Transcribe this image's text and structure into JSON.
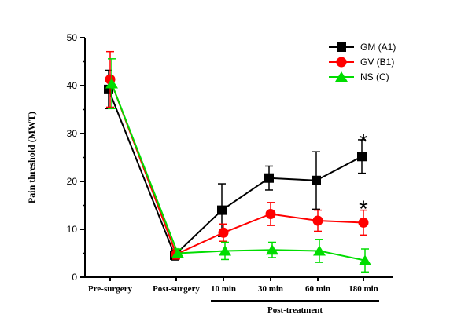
{
  "chart_data": {
    "type": "line",
    "categories": [
      "Pre-surgery",
      "Post-surgery",
      "10 min",
      "30 min",
      "60 min",
      "180 min"
    ],
    "ylabel": "Pain threshold (MWT)",
    "xlabel": "",
    "group_label": "Post-treatment",
    "ylim": [
      0,
      50
    ],
    "yticks": [
      0,
      10,
      20,
      30,
      40,
      50
    ],
    "legend_position": "top-right",
    "series": [
      {
        "name": "GM (A1)",
        "color": "#000000",
        "marker": "square",
        "values": [
          39.2,
          4.6,
          14.0,
          20.7,
          20.2,
          25.2
        ],
        "errors": [
          4.0,
          1.0,
          5.5,
          2.5,
          6.0,
          3.5
        ]
      },
      {
        "name": "GV (B1)",
        "color": "#ff0000",
        "marker": "circle",
        "values": [
          41.3,
          4.8,
          9.3,
          13.2,
          11.8,
          11.4
        ],
        "errors": [
          5.8,
          1.0,
          1.8,
          2.4,
          2.2,
          2.6
        ]
      },
      {
        "name": "NS (C)",
        "color": "#00dd00",
        "marker": "triangle",
        "values": [
          40.4,
          5.0,
          5.5,
          5.7,
          5.5,
          3.5
        ],
        "errors": [
          5.2,
          0.9,
          1.8,
          1.6,
          2.4,
          2.4
        ]
      }
    ],
    "annotations": [
      {
        "text": "*",
        "category": "180 min",
        "y": 29.6
      },
      {
        "text": "*",
        "category": "180 min",
        "y": 15.6
      }
    ]
  }
}
